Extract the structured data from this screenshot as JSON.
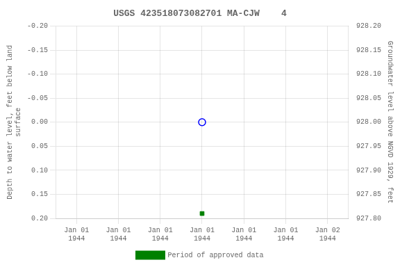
{
  "chart_data": {
    "type": "scatter",
    "title": "USGS 423518073082701 MA-CJW    4",
    "y_label": "Depth to water level, feet below land\nsurface",
    "y2_label": "Groundwater level above NGVD 1929, feet",
    "categories": [
      "Jan 01\n1944",
      "Jan 01\n1944",
      "Jan 01\n1944",
      "Jan 01\n1944",
      "Jan 01\n1944",
      "Jan 01\n1944",
      "Jan 02\n1944"
    ],
    "series": [
      {
        "color": "blue",
        "marker": "open_circle",
        "values": [
          null,
          null,
          null,
          0.0,
          null,
          null,
          null
        ]
      },
      {
        "name": "Period of approved data",
        "color": "green",
        "marker": "square",
        "values": [
          null,
          null,
          null,
          0.19,
          null,
          null,
          null
        ]
      }
    ],
    "ylim": [
      0.2,
      -0.2
    ],
    "yticks": [
      {
        "value": -0.2,
        "label": "-0.20"
      },
      -0.15,
      {
        "value": -0.1,
        "label": "-0.10"
      },
      -0.05,
      {
        "value": 0.0,
        "label": "0.00"
      },
      0.05,
      {
        "value": 0.1,
        "label": "0.10"
      },
      0.15,
      {
        "value": 0.2,
        "label": "0.20"
      }
    ],
    "y2lim": [
      927.8,
      928.2
    ],
    "y2ticks": [
      {
        "value": 928.2,
        "label": "928.20"
      },
      928.15,
      {
        "value": 928.1,
        "label": "928.10"
      },
      928.05,
      {
        "value": 928.0,
        "label": "928.00"
      },
      927.95,
      {
        "value": 927.9,
        "label": "927.90"
      },
      927.85,
      {
        "value": 927.8,
        "label": "927.80"
      }
    ],
    "grid": true,
    "legend": "bottom"
  }
}
